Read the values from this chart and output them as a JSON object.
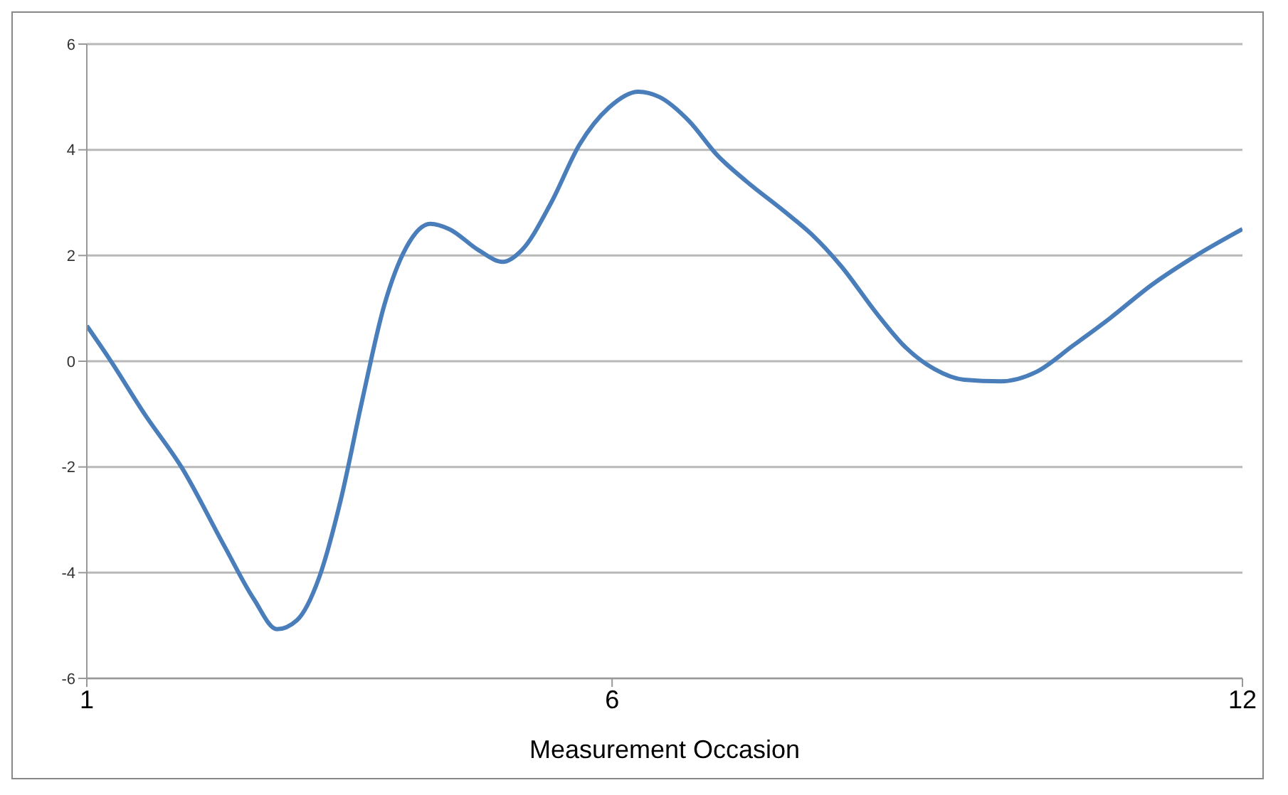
{
  "chart_data": {
    "type": "line",
    "xlabel": "Measurement Occasion",
    "x": [
      1,
      1.21,
      1.55,
      1.9,
      2.31,
      2.59,
      2.81,
      3.0,
      3.21,
      3.42,
      3.62,
      3.83,
      4.04,
      4.27,
      4.45,
      4.73,
      4.96,
      5.14,
      5.42,
      5.69,
      5.97,
      6.25,
      6.45,
      6.73,
      7.0,
      7.28,
      7.63,
      7.9,
      8.18,
      8.52,
      8.8,
      9.07,
      9.35,
      9.7,
      10.04,
      10.39,
      10.73,
      11.14,
      11.56,
      12
    ],
    "series": [
      {
        "color": "#4a7ebb",
        "values": [
          0.67,
          0.06,
          -1.0,
          -2.0,
          -3.5,
          -4.5,
          -5.07,
          -4.9,
          -4.1,
          -2.6,
          -0.75,
          1.05,
          2.15,
          2.6,
          2.5,
          2.1,
          1.88,
          2.1,
          3.0,
          4.1,
          4.8,
          5.1,
          5.0,
          4.55,
          3.9,
          3.4,
          2.85,
          2.4,
          1.8,
          0.9,
          0.25,
          -0.15,
          -0.35,
          -0.38,
          -0.2,
          0.3,
          0.8,
          1.45,
          2.0,
          2.5
        ]
      }
    ],
    "xlim": [
      1,
      12
    ],
    "xticks": [
      1,
      6,
      12
    ],
    "ylim": [
      -6,
      6
    ],
    "yticks": [
      -6,
      -4,
      -2,
      0,
      2,
      4,
      6
    ],
    "grid": "y",
    "marker": "none",
    "line_style": "solid",
    "legend": false
  }
}
